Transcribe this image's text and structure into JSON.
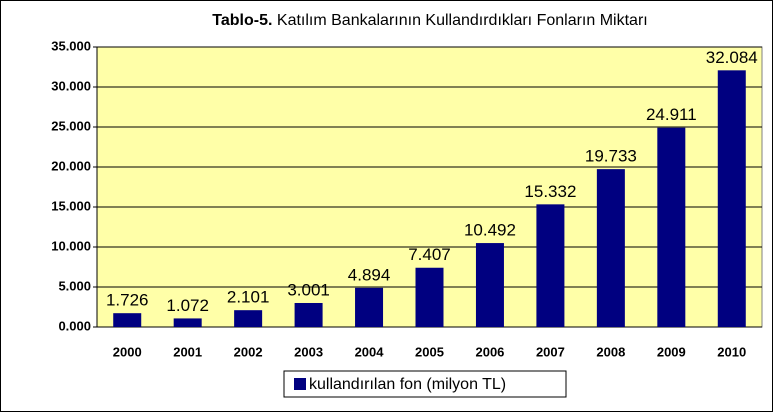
{
  "chart_data": {
    "type": "bar",
    "title_label": "Tablo-5.",
    "title": "Katılım Bankalarının Kullandırdıkları Fonların Miktarı",
    "categories": [
      "2000",
      "2001",
      "2002",
      "2003",
      "2004",
      "2005",
      "2006",
      "2007",
      "2008",
      "2009",
      "2010"
    ],
    "series": [
      {
        "name": "kullandırılan fon (milyon TL)",
        "color": "#000080",
        "values": [
          1726,
          1072,
          2101,
          3001,
          4894,
          7407,
          10492,
          15332,
          19733,
          24911,
          32084
        ],
        "value_labels": [
          "1.726",
          "1.072",
          "2.101",
          "3.001",
          "4.894",
          "7.407",
          "10.492",
          "15.332",
          "19.733",
          "24.911",
          "32.084"
        ]
      }
    ],
    "ylim": [
      0,
      35000
    ],
    "yticks": [
      {
        "value": 0,
        "label": "0.000"
      },
      {
        "value": 5000,
        "label": "5.000"
      },
      {
        "value": 10000,
        "label": "10.000"
      },
      {
        "value": 15000,
        "label": "15.000"
      },
      {
        "value": 20000,
        "label": "20.000"
      },
      {
        "value": 25000,
        "label": "25.000"
      },
      {
        "value": 30000,
        "label": "30.000"
      },
      {
        "value": 35000,
        "label": "35.000"
      }
    ],
    "grid": true,
    "legend": "bottom"
  }
}
